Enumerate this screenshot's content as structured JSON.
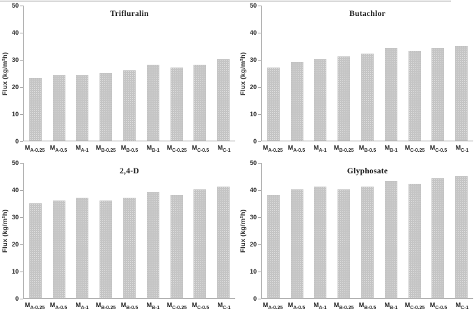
{
  "figure": {
    "background_color": "#ffffff",
    "bar_color": "#c5c5c5",
    "axis_color": "#a3a3a3",
    "text_color": "#262626"
  },
  "chart_data": [
    {
      "type": "bar",
      "title": "Trifluralin",
      "xlabel": "",
      "ylabel": "Flux (kg/m²h)",
      "ylim": [
        0,
        50
      ],
      "yticks": [
        0,
        10,
        20,
        30,
        40,
        50
      ],
      "grid": false,
      "legend": false,
      "categories": [
        {
          "base": "M",
          "sub": "A-0.25"
        },
        {
          "base": "M",
          "sub": "A-0.5"
        },
        {
          "base": "M",
          "sub": "A-1"
        },
        {
          "base": "M",
          "sub": "B-0.25"
        },
        {
          "base": "M",
          "sub": "B-0.5"
        },
        {
          "base": "M",
          "sub": "B-1"
        },
        {
          "base": "M",
          "sub": "C-0.25"
        },
        {
          "base": "M",
          "sub": "C-0.5"
        },
        {
          "base": "M",
          "sub": "C-1"
        }
      ],
      "values": [
        23,
        24,
        24,
        25,
        26,
        28,
        27,
        28,
        30
      ]
    },
    {
      "type": "bar",
      "title": "Butachlor",
      "xlabel": "",
      "ylabel": "Flux (kg/m²h)",
      "ylim": [
        0,
        50
      ],
      "yticks": [
        0,
        10,
        20,
        30,
        40,
        50
      ],
      "grid": false,
      "legend": false,
      "categories": [
        {
          "base": "M",
          "sub": "A-0.25"
        },
        {
          "base": "M",
          "sub": "A-0.5"
        },
        {
          "base": "M",
          "sub": "A-1"
        },
        {
          "base": "M",
          "sub": "B-0.25"
        },
        {
          "base": "M",
          "sub": "B-0.5"
        },
        {
          "base": "M",
          "sub": "B-1"
        },
        {
          "base": "M",
          "sub": "C-0.25"
        },
        {
          "base": "M",
          "sub": "C-0.5"
        },
        {
          "base": "M",
          "sub": "C-1"
        }
      ],
      "values": [
        27,
        29,
        30,
        31,
        32,
        34,
        33,
        34,
        35
      ]
    },
    {
      "type": "bar",
      "title": "2,4-D",
      "xlabel": "",
      "ylabel": "Flux (kg/m²h)",
      "ylim": [
        0,
        50
      ],
      "yticks": [
        0,
        10,
        20,
        30,
        40,
        50
      ],
      "grid": false,
      "legend": false,
      "categories": [
        {
          "base": "M",
          "sub": "A-0.25"
        },
        {
          "base": "M",
          "sub": "A-0.5"
        },
        {
          "base": "M",
          "sub": "A-1"
        },
        {
          "base": "M",
          "sub": "B-0.25"
        },
        {
          "base": "M",
          "sub": "B-0.5"
        },
        {
          "base": "M",
          "sub": "B-1"
        },
        {
          "base": "M",
          "sub": "C-0.25"
        },
        {
          "base": "M",
          "sub": "C-0.5"
        },
        {
          "base": "M",
          "sub": "C-1"
        }
      ],
      "values": [
        35,
        36,
        37,
        36,
        37,
        39,
        38,
        40,
        41
      ]
    },
    {
      "type": "bar",
      "title": "Glyphosate",
      "xlabel": "",
      "ylabel": "Flux (kg/m²h)",
      "ylim": [
        0,
        50
      ],
      "yticks": [
        0,
        10,
        20,
        30,
        40,
        50
      ],
      "grid": false,
      "legend": false,
      "categories": [
        {
          "base": "M",
          "sub": "A-0.25"
        },
        {
          "base": "M",
          "sub": "A-0.5"
        },
        {
          "base": "M",
          "sub": "A-1"
        },
        {
          "base": "M",
          "sub": "B-0.25"
        },
        {
          "base": "M",
          "sub": "B-0.5"
        },
        {
          "base": "M",
          "sub": "B-1"
        },
        {
          "base": "M",
          "sub": "C-0.25"
        },
        {
          "base": "M",
          "sub": "C-0.5"
        },
        {
          "base": "M",
          "sub": "C-1"
        }
      ],
      "values": [
        38,
        40,
        41,
        40,
        41,
        43,
        42,
        44,
        45
      ]
    }
  ]
}
